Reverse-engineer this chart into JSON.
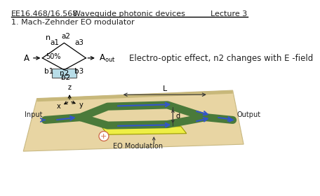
{
  "title_left": "EE16.468/16.568",
  "title_center": "Waveguide photonic devices",
  "title_right": "Lecture 3",
  "section": "1. Mach-Zehnder EO modulator",
  "eo_text": "Electro-optic effect, n2 changes with E -field",
  "bg_color": "#ffffff",
  "slab_face_color": "#e8d5a3",
  "slab_edge_color": "#c8b882",
  "slab_top_color": "#d4c48a",
  "wg_color": "#4a7a3a",
  "wg_lw": 8,
  "arrow_color": "#3355cc",
  "n2_box_color": "#b8dde8",
  "electrode_color": "#eeee44",
  "electrode_edge": "#999900",
  "eo_circle_color": "#cc6644",
  "dim_arrow_color": "#333333",
  "input_label": "Input",
  "output_label": "Output",
  "L_label": "L",
  "d_label": "d",
  "eo_label": "EO Modulation"
}
